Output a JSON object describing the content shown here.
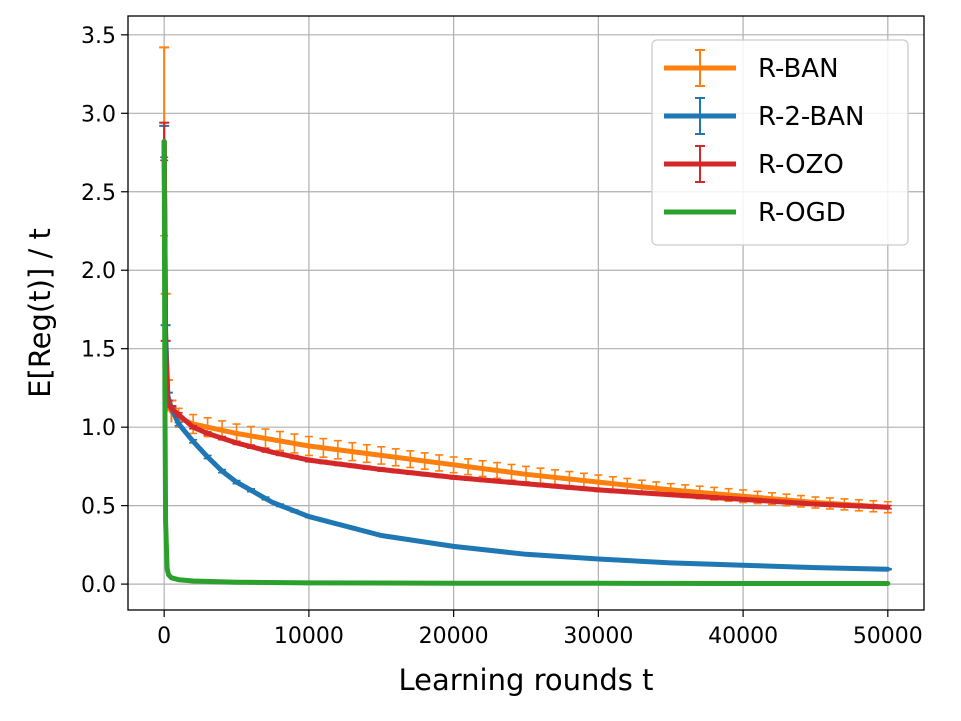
{
  "chart_data": {
    "type": "line",
    "xlabel": "Learning rounds t",
    "ylabel": "E[Reg(t)] / t",
    "xlim": [
      -2500,
      52500
    ],
    "ylim": [
      -0.165,
      3.62
    ],
    "xticks": [
      0,
      10000,
      20000,
      30000,
      40000,
      50000
    ],
    "xtick_labels": [
      "0",
      "10000",
      "20000",
      "30000",
      "40000",
      "50000"
    ],
    "yticks": [
      0.0,
      0.5,
      1.0,
      1.5,
      2.0,
      2.5,
      3.0,
      3.5
    ],
    "ytick_labels": [
      "0.0",
      "0.5",
      "1.0",
      "1.5",
      "2.0",
      "2.5",
      "3.0",
      "3.5"
    ],
    "grid": true,
    "legend_position": "top-right",
    "series": [
      {
        "name": "R-BAN",
        "color": "#ff7f0e",
        "x": [
          0,
          100,
          250,
          500,
          1000,
          2000,
          3000,
          4000,
          5000,
          7500,
          10000,
          15000,
          20000,
          25000,
          30000,
          35000,
          40000,
          45000,
          50000
        ],
        "y": [
          2.82,
          1.6,
          1.2,
          1.1,
          1.06,
          1.02,
          1.0,
          0.98,
          0.96,
          0.92,
          0.88,
          0.82,
          0.76,
          0.7,
          0.65,
          0.6,
          0.56,
          0.52,
          0.49
        ],
        "error": [
          0.6,
          0.25,
          0.1,
          0.07,
          0.06,
          0.06,
          0.06,
          0.06,
          0.06,
          0.06,
          0.06,
          0.055,
          0.05,
          0.05,
          0.045,
          0.04,
          0.04,
          0.035,
          0.035
        ],
        "errorbars": true
      },
      {
        "name": "R-2-BAN",
        "color": "#1f77b4",
        "x": [
          0,
          100,
          250,
          500,
          1000,
          2000,
          3000,
          4000,
          5000,
          7500,
          10000,
          15000,
          20000,
          25000,
          30000,
          35000,
          40000,
          45000,
          50000
        ],
        "y": [
          2.82,
          1.6,
          1.2,
          1.12,
          1.02,
          0.91,
          0.81,
          0.72,
          0.65,
          0.52,
          0.43,
          0.31,
          0.24,
          0.19,
          0.16,
          0.135,
          0.12,
          0.105,
          0.095
        ],
        "error": [
          0.1,
          0.05,
          0.02,
          0.01,
          0.01,
          0.01,
          0.01,
          0.01,
          0.01,
          0.008,
          0.006,
          0.005,
          0.004,
          0.004,
          0.003,
          0.003,
          0.003,
          0.003,
          0.003
        ],
        "errorbars": true
      },
      {
        "name": "R-OZO",
        "color": "#d62728",
        "x": [
          0,
          100,
          250,
          500,
          1000,
          2000,
          3000,
          4000,
          5000,
          7500,
          10000,
          15000,
          20000,
          25000,
          30000,
          35000,
          40000,
          45000,
          50000
        ],
        "y": [
          2.82,
          1.5,
          1.15,
          1.12,
          1.08,
          1.0,
          0.96,
          0.93,
          0.9,
          0.84,
          0.79,
          0.73,
          0.68,
          0.64,
          0.6,
          0.57,
          0.54,
          0.51,
          0.49
        ],
        "error": [
          0.12,
          0.05,
          0.02,
          0.015,
          0.012,
          0.01,
          0.01,
          0.01,
          0.01,
          0.01,
          0.01,
          0.01,
          0.01,
          0.01,
          0.01,
          0.01,
          0.01,
          0.01,
          0.01
        ],
        "errorbars": true
      },
      {
        "name": "R-OGD",
        "color": "#2ca02c",
        "x": [
          0,
          50,
          100,
          200,
          300,
          500,
          1000,
          2000,
          5000,
          10000,
          20000,
          30000,
          40000,
          50000
        ],
        "y": [
          2.82,
          1.2,
          0.4,
          0.1,
          0.06,
          0.04,
          0.028,
          0.02,
          0.012,
          0.008,
          0.006,
          0.005,
          0.004,
          0.004
        ],
        "errorbars": false
      }
    ]
  }
}
